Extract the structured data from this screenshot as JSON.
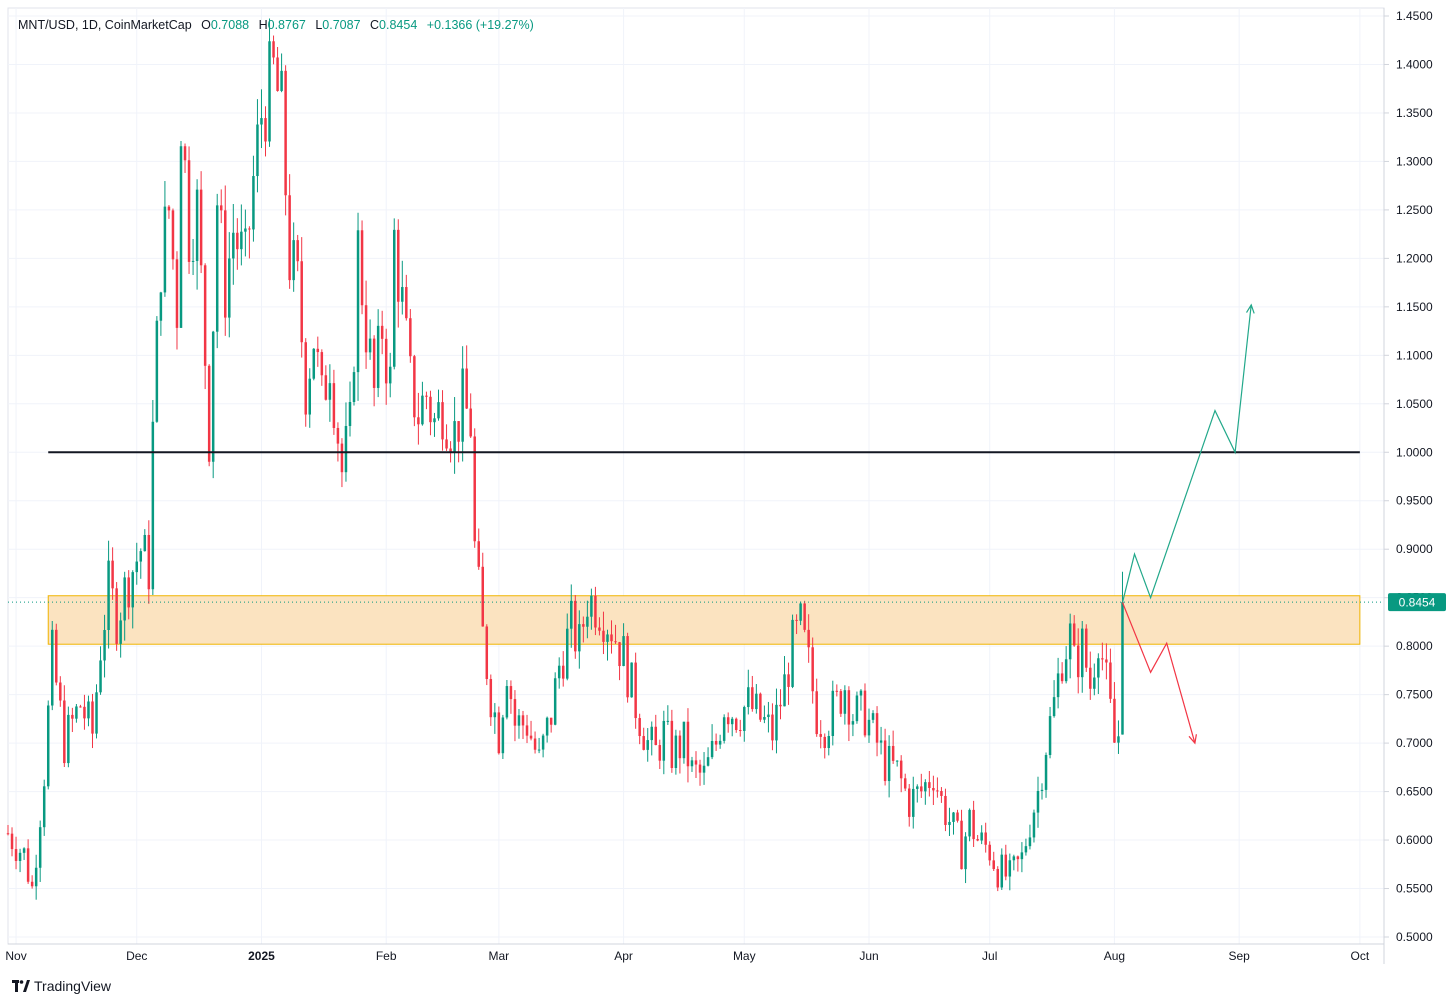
{
  "header": {
    "symbol": "MNT/USD, 1D, CoinMarketCap",
    "o_label": "O",
    "o_value": "0.7088",
    "h_label": "H",
    "h_value": "0.8767",
    "l_label": "L",
    "l_value": "0.7087",
    "c_label": "C",
    "c_value": "0.8454",
    "change": "+0.1366 (+19.27%)"
  },
  "brand": {
    "name": "TradingView"
  },
  "colors": {
    "up": "#089981",
    "down": "#f23645",
    "zone_fill": "#fbe3c0",
    "zone_border": "#f0b400",
    "hline": "#131722",
    "grid": "#f0f3fa",
    "price_badge": "#089981"
  },
  "chart_data": {
    "type": "candlestick",
    "ylim": [
      0.5,
      1.45
    ],
    "y_ticks": [
      "1.4500",
      "1.4000",
      "1.3500",
      "1.3000",
      "1.2500",
      "1.2000",
      "1.1500",
      "1.1000",
      "1.0500",
      "1.0000",
      "0.9500",
      "0.9000",
      "0.8500",
      "0.8000",
      "0.7500",
      "0.7000",
      "0.6500",
      "0.6000",
      "0.5500",
      "0.5000"
    ],
    "x_ticks": [
      {
        "label": "Nov",
        "date": "2024-11-01"
      },
      {
        "label": "Dec",
        "date": "2024-12-01"
      },
      {
        "label": "2025",
        "date": "2025-01-01",
        "bold": true
      },
      {
        "label": "Feb",
        "date": "2025-02-01"
      },
      {
        "label": "Mar",
        "date": "2025-03-01"
      },
      {
        "label": "Apr",
        "date": "2025-04-01"
      },
      {
        "label": "May",
        "date": "2025-05-01"
      },
      {
        "label": "Jun",
        "date": "2025-06-01"
      },
      {
        "label": "Jul",
        "date": "2025-07-01"
      },
      {
        "label": "Aug",
        "date": "2025-08-01"
      },
      {
        "label": "Sep",
        "date": "2025-09-01"
      },
      {
        "label": "Oct",
        "date": "2025-10-01"
      }
    ],
    "x_range": [
      "2024-10-30",
      "2025-10-07"
    ],
    "current_price": "0.8454",
    "zone": {
      "from": "2024-11-09",
      "to": "2025-10-01",
      "low": 0.802,
      "high": 0.852
    },
    "horizontal_line": {
      "from": "2024-11-09",
      "to": "2025-10-01",
      "price": 1.0
    },
    "bullish_path": [
      [
        "2025-08-03",
        0.845
      ],
      [
        "2025-08-06",
        0.895
      ],
      [
        "2025-08-10",
        0.85
      ],
      [
        "2025-08-26",
        1.043
      ],
      [
        "2025-08-31",
        1.0
      ],
      [
        "2025-09-04",
        1.152
      ]
    ],
    "bearish_path": [
      [
        "2025-08-03",
        0.845
      ],
      [
        "2025-08-10",
        0.773
      ],
      [
        "2025-08-14",
        0.803
      ],
      [
        "2025-08-21",
        0.7
      ]
    ],
    "anchors": [
      [
        "2024-10-30",
        0.607
      ],
      [
        "2024-11-03",
        0.585
      ],
      [
        "2024-11-05",
        0.55
      ],
      [
        "2024-11-08",
        0.67
      ],
      [
        "2024-11-10",
        0.79
      ],
      [
        "2024-11-13",
        0.7
      ],
      [
        "2024-11-17",
        0.74
      ],
      [
        "2024-11-20",
        0.71
      ],
      [
        "2024-11-22",
        0.8
      ],
      [
        "2024-11-24",
        0.86
      ],
      [
        "2024-11-26",
        0.83
      ],
      [
        "2024-11-29",
        0.87
      ],
      [
        "2024-12-02",
        0.9
      ],
      [
        "2024-12-04",
        0.88
      ],
      [
        "2024-12-05",
        1.02
      ],
      [
        "2024-12-07",
        1.2
      ],
      [
        "2024-12-09",
        1.25
      ],
      [
        "2024-12-11",
        1.15
      ],
      [
        "2024-12-12",
        1.35
      ],
      [
        "2024-12-14",
        1.23
      ],
      [
        "2024-12-16",
        1.25
      ],
      [
        "2024-12-18",
        1.1
      ],
      [
        "2024-12-19",
        1.02
      ],
      [
        "2024-12-21",
        1.26
      ],
      [
        "2024-12-23",
        1.17
      ],
      [
        "2024-12-25",
        1.23
      ],
      [
        "2024-12-28",
        1.19
      ],
      [
        "2024-12-30",
        1.28
      ],
      [
        "2025-01-01",
        1.35
      ],
      [
        "2025-01-04",
        1.39
      ],
      [
        "2025-01-06",
        1.35
      ],
      [
        "2025-01-08",
        1.2
      ],
      [
        "2025-01-10",
        1.17
      ],
      [
        "2025-01-12",
        1.07
      ],
      [
        "2025-01-14",
        1.12
      ],
      [
        "2025-01-16",
        1.05
      ],
      [
        "2025-01-18",
        1.1
      ],
      [
        "2025-01-21",
        0.98
      ],
      [
        "2025-01-23",
        1.02
      ],
      [
        "2025-01-25",
        1.21
      ],
      [
        "2025-01-27",
        1.13
      ],
      [
        "2025-01-29",
        1.06
      ],
      [
        "2025-01-31",
        1.13
      ],
      [
        "2025-02-02",
        1.07
      ],
      [
        "2025-02-03",
        1.22
      ],
      [
        "2025-02-05",
        1.15
      ],
      [
        "2025-02-07",
        1.07
      ],
      [
        "2025-02-09",
        1.04
      ],
      [
        "2025-02-11",
        1.06
      ],
      [
        "2025-02-13",
        1.03
      ],
      [
        "2025-02-15",
        1.05
      ],
      [
        "2025-02-18",
        1.02
      ],
      [
        "2025-02-20",
        1.05
      ],
      [
        "2025-02-22",
        1.03
      ],
      [
        "2025-02-23",
        0.9
      ],
      [
        "2025-02-25",
        0.81
      ],
      [
        "2025-02-27",
        0.75
      ],
      [
        "2025-03-01",
        0.71
      ],
      [
        "2025-03-03",
        0.78
      ],
      [
        "2025-03-05",
        0.72
      ],
      [
        "2025-03-08",
        0.72
      ],
      [
        "2025-03-11",
        0.68
      ],
      [
        "2025-03-14",
        0.73
      ],
      [
        "2025-03-16",
        0.78
      ],
      [
        "2025-03-19",
        0.82
      ],
      [
        "2025-03-21",
        0.8
      ],
      [
        "2025-03-23",
        0.85
      ],
      [
        "2025-03-26",
        0.84
      ],
      [
        "2025-03-29",
        0.82
      ],
      [
        "2025-04-01",
        0.79
      ],
      [
        "2025-04-04",
        0.74
      ],
      [
        "2025-04-07",
        0.7
      ],
      [
        "2025-04-09",
        0.69
      ],
      [
        "2025-04-11",
        0.71
      ],
      [
        "2025-04-13",
        0.69
      ],
      [
        "2025-04-16",
        0.7
      ],
      [
        "2025-04-18",
        0.67
      ],
      [
        "2025-04-21",
        0.665
      ],
      [
        "2025-04-24",
        0.7
      ],
      [
        "2025-04-26",
        0.74
      ],
      [
        "2025-04-29",
        0.73
      ],
      [
        "2025-05-02",
        0.74
      ],
      [
        "2025-05-05",
        0.725
      ],
      [
        "2025-05-08",
        0.71
      ],
      [
        "2025-05-11",
        0.76
      ],
      [
        "2025-05-13",
        0.8
      ],
      [
        "2025-05-15",
        0.82
      ],
      [
        "2025-05-17",
        0.78
      ],
      [
        "2025-05-19",
        0.73
      ],
      [
        "2025-05-21",
        0.72
      ],
      [
        "2025-05-24",
        0.74
      ],
      [
        "2025-05-26",
        0.76
      ],
      [
        "2025-05-28",
        0.73
      ],
      [
        "2025-05-31",
        0.73
      ],
      [
        "2025-06-03",
        0.7
      ],
      [
        "2025-06-05",
        0.68
      ],
      [
        "2025-06-08",
        0.67
      ],
      [
        "2025-06-11",
        0.64
      ],
      [
        "2025-06-14",
        0.65
      ],
      [
        "2025-06-17",
        0.67
      ],
      [
        "2025-06-19",
        0.64
      ],
      [
        "2025-06-22",
        0.61
      ],
      [
        "2025-06-24",
        0.59
      ],
      [
        "2025-06-26",
        0.62
      ],
      [
        "2025-06-28",
        0.6
      ],
      [
        "2025-07-01",
        0.59
      ],
      [
        "2025-07-03",
        0.57
      ],
      [
        "2025-07-06",
        0.56
      ],
      [
        "2025-07-09",
        0.58
      ],
      [
        "2025-07-11",
        0.62
      ],
      [
        "2025-07-13",
        0.65
      ],
      [
        "2025-07-15",
        0.7
      ],
      [
        "2025-07-17",
        0.74
      ],
      [
        "2025-07-19",
        0.79
      ],
      [
        "2025-07-21",
        0.81
      ],
      [
        "2025-07-22",
        0.78
      ],
      [
        "2025-07-24",
        0.8
      ],
      [
        "2025-07-26",
        0.76
      ],
      [
        "2025-07-28",
        0.815
      ],
      [
        "2025-07-30",
        0.76
      ],
      [
        "2025-08-01",
        0.7
      ],
      [
        "2025-08-02",
        0.709
      ]
    ],
    "last_candle": {
      "date": "2025-08-03",
      "open": 0.7088,
      "high": 0.8767,
      "low": 0.7087,
      "close": 0.8454
    }
  }
}
